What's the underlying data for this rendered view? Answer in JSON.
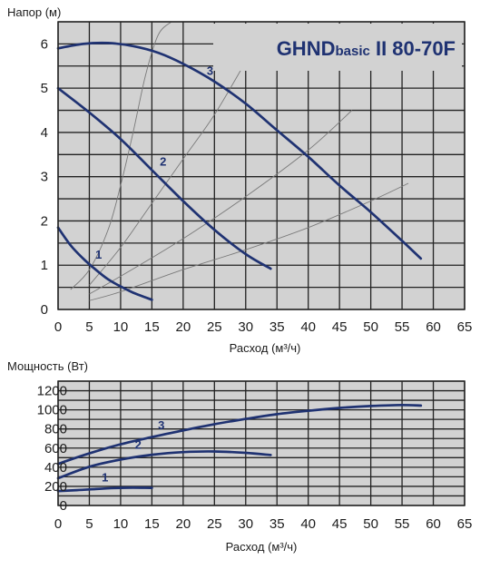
{
  "chart_data": [
    {
      "type": "line",
      "title": "GHNDbasic II 80-70F",
      "title_parts": {
        "main1": "GHND",
        "small": "basic",
        "main2": "II 80-70F"
      },
      "ylabel": "Напор (м)",
      "xlabel": "Расход (м³/ч)",
      "xlim": [
        0,
        65
      ],
      "ylim": [
        0,
        6.5
      ],
      "x_ticks": [
        "0",
        "5",
        "10",
        "15",
        "20",
        "25",
        "30",
        "35",
        "40",
        "45",
        "50",
        "55",
        "60",
        "65"
      ],
      "y_ticks": [
        "0",
        "1",
        "2",
        "3",
        "4",
        "5",
        "6"
      ],
      "grid": true,
      "series": [
        {
          "name": "1",
          "x": [
            0,
            2,
            4,
            6,
            8,
            10,
            12,
            15
          ],
          "y": [
            1.85,
            1.45,
            1.15,
            0.9,
            0.68,
            0.52,
            0.38,
            0.22
          ]
        },
        {
          "name": "2",
          "x": [
            0,
            5,
            10,
            15,
            20,
            25,
            30,
            34
          ],
          "y": [
            5.0,
            4.45,
            3.85,
            3.15,
            2.45,
            1.8,
            1.25,
            0.92
          ]
        },
        {
          "name": "3",
          "x": [
            0,
            4,
            8,
            12,
            16,
            20,
            25,
            30,
            35,
            40,
            45,
            50,
            55,
            58
          ],
          "y": [
            5.9,
            6.0,
            6.02,
            5.95,
            5.8,
            5.55,
            5.15,
            4.65,
            4.05,
            3.45,
            2.8,
            2.2,
            1.55,
            1.15
          ]
        }
      ],
      "system_curves": [
        {
          "x": [
            2,
            5,
            8,
            10,
            12,
            14,
            16,
            18.1
          ],
          "y": [
            0.45,
            0.9,
            1.8,
            2.8,
            4.0,
            5.3,
            6.2,
            6.5
          ]
        },
        {
          "x": [
            5,
            10,
            15,
            20,
            25,
            30
          ],
          "y": [
            0.55,
            1.4,
            2.4,
            3.4,
            4.4,
            5.6
          ]
        },
        {
          "x": [
            5,
            10,
            20,
            30,
            40,
            47
          ],
          "y": [
            0.35,
            0.75,
            1.6,
            2.55,
            3.6,
            4.5
          ]
        },
        {
          "x": [
            5,
            10,
            20,
            30,
            40,
            50,
            56
          ],
          "y": [
            0.2,
            0.4,
            0.9,
            1.35,
            1.85,
            2.45,
            2.85
          ]
        }
      ],
      "curve_labels": [
        {
          "text": "1",
          "x": 6.5,
          "y": 1.15
        },
        {
          "text": "2",
          "x": 16.8,
          "y": 3.25
        },
        {
          "text": "3",
          "x": 24.3,
          "y": 5.3
        }
      ]
    },
    {
      "type": "line",
      "title": "",
      "ylabel": "Мощность (Вт)",
      "xlabel": "Расход (м³/ч)",
      "xlim": [
        0,
        65
      ],
      "ylim": [
        0,
        1300
      ],
      "x_ticks": [
        "0",
        "5",
        "10",
        "15",
        "20",
        "25",
        "30",
        "35",
        "40",
        "45",
        "50",
        "55",
        "60",
        "65"
      ],
      "y_ticks": [
        "0",
        "200",
        "400",
        "600",
        "800",
        "1000",
        "1200"
      ],
      "grid": true,
      "series": [
        {
          "name": "1",
          "x": [
            0,
            3,
            6,
            9,
            12,
            15
          ],
          "y": [
            150,
            160,
            172,
            182,
            186,
            184
          ]
        },
        {
          "name": "2",
          "x": [
            0,
            5,
            10,
            15,
            20,
            25,
            30,
            34
          ],
          "y": [
            285,
            405,
            480,
            530,
            558,
            565,
            550,
            528
          ]
        },
        {
          "name": "3",
          "x": [
            0,
            5,
            10,
            15,
            20,
            25,
            30,
            35,
            40,
            45,
            50,
            55,
            58
          ],
          "y": [
            435,
            545,
            640,
            715,
            785,
            850,
            905,
            955,
            990,
            1020,
            1040,
            1050,
            1045
          ]
        }
      ],
      "curve_labels": [
        {
          "text": "1",
          "x": 7.5,
          "y": 250
        },
        {
          "text": "2",
          "x": 12.8,
          "y": 595
        },
        {
          "text": "3",
          "x": 16.5,
          "y": 795
        }
      ]
    }
  ]
}
